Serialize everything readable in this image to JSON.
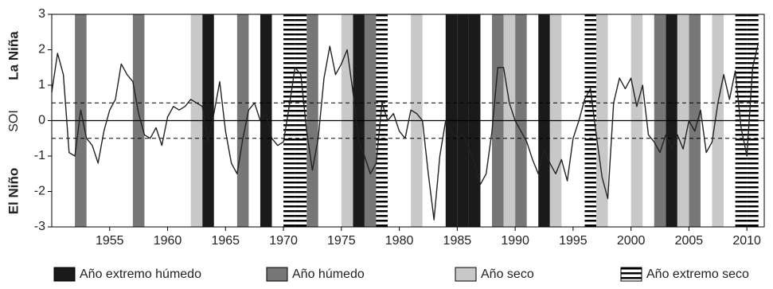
{
  "chart_data": {
    "type": "line",
    "ylabel": "SOI",
    "upper_label": "La Niña",
    "lower_label": "El Niño",
    "xlim": [
      1950,
      2011.5
    ],
    "xticks": [
      1955,
      1960,
      1965,
      1970,
      1975,
      1980,
      1985,
      1990,
      1995,
      2000,
      2005,
      2010
    ],
    "ylim": [
      -3,
      3
    ],
    "yticks": [
      -3,
      -2,
      -1,
      0,
      1,
      2,
      3
    ],
    "thresholds": [
      0.5,
      -0.5
    ],
    "color": "#222222",
    "x": [
      1950,
      1950.5,
      1951,
      1951.5,
      1952,
      1952.5,
      1953,
      1953.5,
      1954,
      1954.5,
      1955,
      1955.5,
      1956,
      1956.5,
      1957,
      1957.5,
      1958,
      1958.5,
      1959,
      1959.5,
      1960,
      1960.5,
      1961,
      1961.5,
      1962,
      1962.5,
      1963,
      1963.5,
      1964,
      1964.5,
      1965,
      1965.5,
      1966,
      1966.5,
      1967,
      1967.5,
      1968,
      1968.5,
      1969,
      1969.5,
      1970,
      1970.5,
      1971,
      1971.5,
      1972,
      1972.5,
      1973,
      1973.5,
      1974,
      1974.5,
      1975,
      1975.5,
      1976,
      1976.5,
      1977,
      1977.5,
      1978,
      1978.5,
      1979,
      1979.5,
      1980,
      1980.5,
      1981,
      1981.5,
      1982,
      1982.5,
      1983,
      1983.5,
      1984,
      1984.5,
      1985,
      1985.5,
      1986,
      1986.5,
      1987,
      1987.5,
      1988,
      1988.5,
      1989,
      1989.5,
      1990,
      1990.5,
      1991,
      1991.5,
      1992,
      1992.5,
      1993,
      1993.5,
      1994,
      1994.5,
      1995,
      1995.5,
      1996,
      1996.5,
      1997,
      1997.5,
      1998,
      1998.5,
      1999,
      1999.5,
      2000,
      2000.5,
      2001,
      2001.5,
      2002,
      2002.5,
      2003,
      2003.5,
      2004,
      2004.5,
      2005,
      2005.5,
      2006,
      2006.5,
      2007,
      2007.5,
      2008,
      2008.5,
      2009,
      2009.5,
      2010,
      2010.5,
      2011
    ],
    "values": [
      0.8,
      1.9,
      1.3,
      -0.9,
      -1.0,
      0.3,
      -0.5,
      -0.7,
      -1.2,
      -0.3,
      0.3,
      0.6,
      1.6,
      1.3,
      1.1,
      0.2,
      -0.4,
      -0.5,
      -0.2,
      -0.7,
      0.1,
      0.4,
      0.3,
      0.4,
      0.6,
      0.5,
      0.4,
      -0.6,
      0.2,
      1.1,
      -0.3,
      -1.2,
      -1.5,
      -0.5,
      0.3,
      0.5,
      0.0,
      0.2,
      -0.5,
      -0.7,
      -0.6,
      0.4,
      1.5,
      1.3,
      -0.3,
      -1.4,
      -0.5,
      1.2,
      2.1,
      1.3,
      1.6,
      2.0,
      0.8,
      -0.6,
      -1.0,
      -1.5,
      -1.2,
      0.5,
      0.0,
      0.2,
      -0.3,
      -0.5,
      0.3,
      0.2,
      0.0,
      -1.5,
      -2.8,
      -1.0,
      0.0,
      -0.3,
      -0.5,
      -0.4,
      -0.8,
      -1.2,
      -1.8,
      -1.5,
      -0.3,
      1.5,
      1.5,
      0.5,
      0.0,
      -0.3,
      -0.6,
      -1.1,
      -1.5,
      -0.8,
      -1.2,
      -1.5,
      -1.1,
      -1.7,
      -0.5,
      0.0,
      0.6,
      0.9,
      -0.4,
      -1.6,
      -2.2,
      0.5,
      1.2,
      0.9,
      1.2,
      0.4,
      1.0,
      -0.4,
      -0.6,
      -0.9,
      -0.4,
      -0.8,
      -0.4,
      -0.8,
      0.0,
      -0.3,
      0.3,
      -0.9,
      -0.6,
      0.5,
      1.3,
      0.6,
      1.4,
      -0.2,
      -1.0,
      1.5,
      2.2
    ],
    "bands": [
      {
        "name": "Año extremo húmedo",
        "color": "#1a1a1a",
        "years": [
          1963,
          1968,
          1976,
          1984,
          1985,
          1986,
          1992,
          2003
        ]
      },
      {
        "name": "Año húmedo",
        "color": "#777777",
        "years": [
          1952,
          1957,
          1966,
          1972,
          1977,
          1988,
          1990,
          2002,
          2005
        ]
      },
      {
        "name": "Año seco",
        "color": "#c8c8c8",
        "years": [
          1962,
          1975,
          1981,
          1989,
          1993,
          1997,
          2000,
          2004,
          2007
        ]
      },
      {
        "name": "Año extremo seco",
        "color": "#000000",
        "hatch": true,
        "years": [
          1970,
          1971,
          1978,
          1996,
          2009,
          2010
        ]
      }
    ]
  }
}
